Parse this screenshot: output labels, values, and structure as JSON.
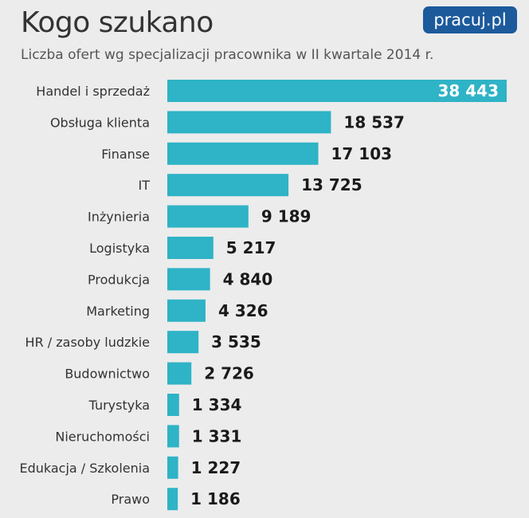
{
  "header": {
    "title": "Kogo szukano",
    "subtitle": "Liczba ofert wg specjalizacji pracownika w II kwartale 2014 r.",
    "logo_text": "pracuj.pl"
  },
  "colors": {
    "bar": "#2fb3c6",
    "background": "#ececec",
    "logo_bg": "#1c5a9c"
  },
  "chart_data": {
    "type": "bar",
    "orientation": "horizontal",
    "title": "Kogo szukano",
    "subtitle": "Liczba ofert wg specjalizacji pracownika w II kwartale 2014 r.",
    "categories": [
      "Handel i sprzedaż",
      "Obsługa klienta",
      "Finanse",
      "IT",
      "Inżynieria",
      "Logistyka",
      "Produkcja",
      "Marketing",
      "HR / zasoby ludzkie",
      "Budownictwo",
      "Turystyka",
      "Nieruchomości",
      "Edukacja / Szkolenia",
      "Prawo"
    ],
    "values": [
      38443,
      18537,
      17103,
      13725,
      9189,
      5217,
      4840,
      4326,
      3535,
      2726,
      1334,
      1331,
      1227,
      1186
    ],
    "value_labels": [
      "38 443",
      "18 537",
      "17 103",
      "13 725",
      "9 189",
      "5 217",
      "4 840",
      "4 326",
      "3 535",
      "2 726",
      "1 334",
      "1 331",
      "1 227",
      "1 186"
    ],
    "xlim": [
      0,
      38443
    ],
    "grid": false,
    "legend": "none"
  }
}
